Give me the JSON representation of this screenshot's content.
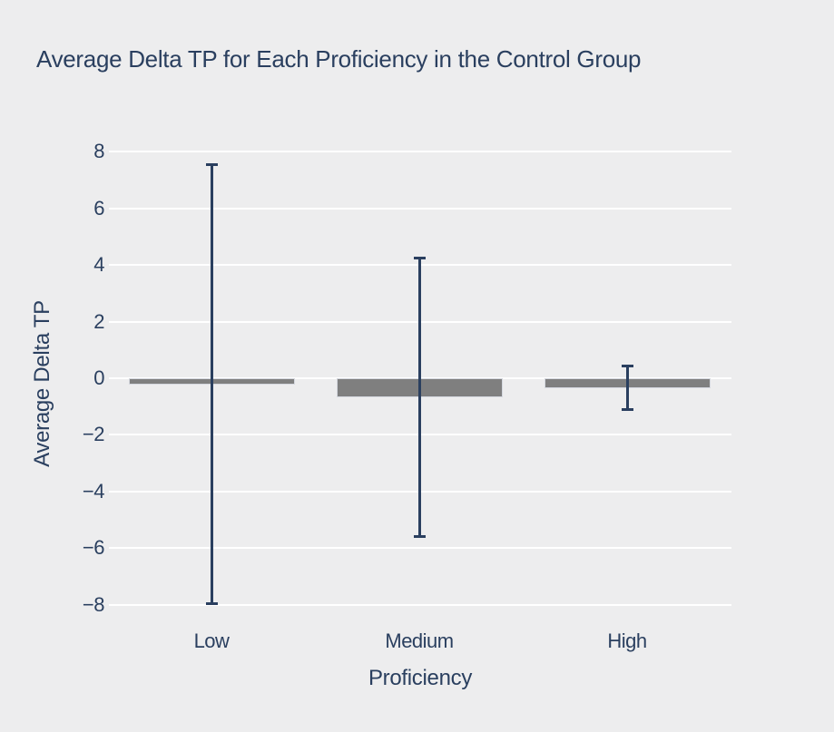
{
  "chart_data": {
    "type": "bar",
    "title": "Average Delta TP for Each Proficiency in the Control Group",
    "xlabel": "Proficiency",
    "ylabel": "Average Delta TP",
    "categories": [
      "Low",
      "Medium",
      "High"
    ],
    "values": [
      -0.21,
      -0.67,
      -0.35
    ],
    "error_y": [
      7.77,
      4.93,
      0.77
    ],
    "yticks": [
      8,
      6,
      4,
      2,
      0,
      -2,
      -4,
      -6,
      -8
    ],
    "ylim": [
      -8.8,
      8.9
    ],
    "grid": true,
    "legend": false,
    "colors": {
      "bar_fill": "#7f7f7f",
      "bar_border": "#d5d8df",
      "error_bar": "#2a3f5f",
      "gridline": "#ffffff",
      "background": "#ededee",
      "text": "#2a3f5f"
    }
  }
}
